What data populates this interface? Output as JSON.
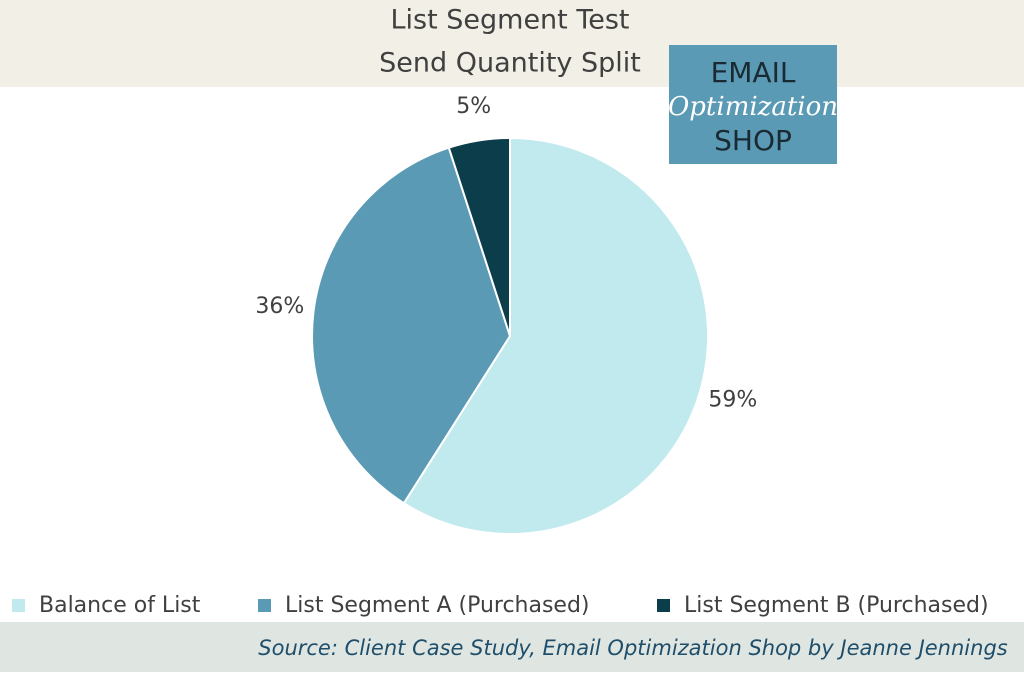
{
  "chart_data": {
    "type": "pie",
    "title": "List Segment Test",
    "subtitle": "Send Quantity Split",
    "categories": [
      "Balance of List",
      "List Segment A (Purchased)",
      "List Segment B (Purchased)"
    ],
    "values": [
      59,
      36,
      5
    ],
    "value_labels": [
      "59%",
      "36%",
      "5%"
    ],
    "colors": [
      "#c1eaee",
      "#5b9ab4",
      "#0c3d4b"
    ],
    "legend": "bottom",
    "source": "Source: Client Case Study, Email Optimization Shop by Jeanne Jennings"
  },
  "logo": {
    "line1": "EMAIL",
    "line2": "Optimization",
    "line3": "SHOP"
  }
}
